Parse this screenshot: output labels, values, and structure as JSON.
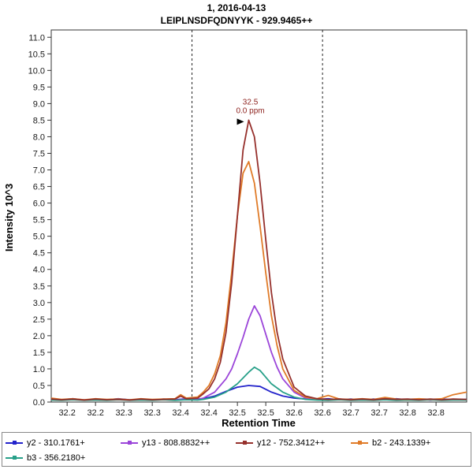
{
  "header": {
    "title_line1": "1, 2016-04-13",
    "title_line2": "LEIPLNSDFQDNYYK - 929.9465++"
  },
  "chart_data": {
    "type": "line",
    "title": "1, 2016-04-13",
    "subtitle": "LEIPLNSDFQDNYYK - 929.9465++",
    "xlabel": "Retention Time",
    "ylabel": "Intensity 10^3",
    "xlim": [
      32.172,
      32.904
    ],
    "ylim": [
      0,
      11.22
    ],
    "grid": false,
    "legend_position": "bottom",
    "xticks": {
      "values": [
        32.2,
        32.25,
        32.3,
        32.35,
        32.4,
        32.45,
        32.5,
        32.55,
        32.6,
        32.65,
        32.7,
        32.75,
        32.8,
        32.85
      ],
      "labels": [
        "32.2",
        "32.2",
        "32.3",
        "32.3",
        "32.4",
        "32.4",
        "32.5",
        "32.5",
        "32.6",
        "32.6",
        "32.7",
        "32.7",
        "32.8",
        "32.8"
      ]
    },
    "yticks": {
      "values": [
        0,
        0.5,
        1.0,
        1.5,
        2.0,
        2.5,
        3.0,
        3.5,
        4.0,
        4.5,
        5.0,
        5.5,
        6.0,
        6.5,
        7.0,
        7.5,
        8.0,
        8.5,
        9.0,
        9.5,
        10.0,
        10.5,
        11.0
      ],
      "labels": [
        "0.0",
        "0.5",
        "1.0",
        "1.5",
        "2.0",
        "2.5",
        "3.0",
        "3.5",
        "4.0",
        "4.5",
        "5.0",
        "5.5",
        "6.0",
        "6.5",
        "7.0",
        "7.5",
        "8.0",
        "8.5",
        "9.0",
        "9.5",
        "10.0",
        "10.5",
        "11.0"
      ]
    },
    "boundaries": [
      32.42,
      32.65
    ],
    "annotation": {
      "x": 32.52,
      "y": 8.5,
      "label": "32.5",
      "sublabel": "0.0 ppm",
      "color": "#8e2420",
      "arrow_color": "#000000"
    },
    "draw_order": [
      0,
      1,
      4,
      3,
      2
    ],
    "series": [
      {
        "id": "y2",
        "name": "y2 - 310.1761+",
        "color": "#2323cb",
        "points": [
          [
            32.172,
            0.1
          ],
          [
            32.19,
            0.07
          ],
          [
            32.21,
            0.1
          ],
          [
            32.23,
            0.06
          ],
          [
            32.25,
            0.09
          ],
          [
            32.27,
            0.07
          ],
          [
            32.29,
            0.1
          ],
          [
            32.31,
            0.07
          ],
          [
            32.33,
            0.08
          ],
          [
            32.35,
            0.06
          ],
          [
            32.37,
            0.09
          ],
          [
            32.39,
            0.07
          ],
          [
            32.41,
            0.1
          ],
          [
            32.43,
            0.09
          ],
          [
            32.44,
            0.1
          ],
          [
            32.46,
            0.18
          ],
          [
            32.48,
            0.32
          ],
          [
            32.5,
            0.45
          ],
          [
            32.52,
            0.5
          ],
          [
            32.54,
            0.47
          ],
          [
            32.56,
            0.3
          ],
          [
            32.58,
            0.18
          ],
          [
            32.6,
            0.12
          ],
          [
            32.62,
            0.09
          ],
          [
            32.64,
            0.08
          ],
          [
            32.66,
            0.1
          ],
          [
            32.68,
            0.07
          ],
          [
            32.7,
            0.09
          ],
          [
            32.72,
            0.06
          ],
          [
            32.74,
            0.09
          ],
          [
            32.76,
            0.07
          ],
          [
            32.78,
            0.1
          ],
          [
            32.8,
            0.07
          ],
          [
            32.82,
            0.09
          ],
          [
            32.84,
            0.06
          ],
          [
            32.86,
            0.09
          ],
          [
            32.88,
            0.07
          ],
          [
            32.904,
            0.08
          ]
        ]
      },
      {
        "id": "y13",
        "name": "y13 - 808.8832++",
        "color": "#9b45d9",
        "points": [
          [
            32.172,
            0.08
          ],
          [
            32.19,
            0.06
          ],
          [
            32.21,
            0.09
          ],
          [
            32.23,
            0.07
          ],
          [
            32.25,
            0.08
          ],
          [
            32.27,
            0.06
          ],
          [
            32.29,
            0.09
          ],
          [
            32.31,
            0.06
          ],
          [
            32.33,
            0.08
          ],
          [
            32.35,
            0.07
          ],
          [
            32.37,
            0.08
          ],
          [
            32.39,
            0.06
          ],
          [
            32.41,
            0.09
          ],
          [
            32.43,
            0.08
          ],
          [
            32.44,
            0.12
          ],
          [
            32.46,
            0.3
          ],
          [
            32.48,
            0.7
          ],
          [
            32.49,
            1.0
          ],
          [
            32.5,
            1.45
          ],
          [
            32.51,
            1.95
          ],
          [
            32.52,
            2.5
          ],
          [
            32.53,
            2.9
          ],
          [
            32.54,
            2.6
          ],
          [
            32.55,
            2.05
          ],
          [
            32.56,
            1.5
          ],
          [
            32.57,
            1.05
          ],
          [
            32.58,
            0.7
          ],
          [
            32.6,
            0.3
          ],
          [
            32.62,
            0.12
          ],
          [
            32.64,
            0.08
          ],
          [
            32.66,
            0.07
          ],
          [
            32.68,
            0.09
          ],
          [
            32.7,
            0.06
          ],
          [
            32.72,
            0.08
          ],
          [
            32.74,
            0.06
          ],
          [
            32.76,
            0.09
          ],
          [
            32.78,
            0.07
          ],
          [
            32.8,
            0.08
          ],
          [
            32.82,
            0.06
          ],
          [
            32.84,
            0.08
          ],
          [
            32.86,
            0.06
          ],
          [
            32.88,
            0.08
          ],
          [
            32.904,
            0.07
          ]
        ]
      },
      {
        "id": "y12",
        "name": "y12 - 752.3412++",
        "color": "#96302c",
        "points": [
          [
            32.172,
            0.09
          ],
          [
            32.19,
            0.07
          ],
          [
            32.21,
            0.09
          ],
          [
            32.23,
            0.06
          ],
          [
            32.25,
            0.09
          ],
          [
            32.27,
            0.07
          ],
          [
            32.29,
            0.08
          ],
          [
            32.31,
            0.06
          ],
          [
            32.33,
            0.09
          ],
          [
            32.35,
            0.07
          ],
          [
            32.37,
            0.08
          ],
          [
            32.39,
            0.09
          ],
          [
            32.4,
            0.18
          ],
          [
            32.41,
            0.1
          ],
          [
            32.43,
            0.12
          ],
          [
            32.44,
            0.25
          ],
          [
            32.45,
            0.4
          ],
          [
            32.46,
            0.7
          ],
          [
            32.47,
            1.2
          ],
          [
            32.48,
            2.1
          ],
          [
            32.49,
            3.6
          ],
          [
            32.5,
            5.6
          ],
          [
            32.51,
            7.6
          ],
          [
            32.52,
            8.5
          ],
          [
            32.53,
            8.0
          ],
          [
            32.54,
            6.6
          ],
          [
            32.55,
            4.9
          ],
          [
            32.56,
            3.3
          ],
          [
            32.57,
            2.1
          ],
          [
            32.58,
            1.3
          ],
          [
            32.6,
            0.45
          ],
          [
            32.62,
            0.18
          ],
          [
            32.64,
            0.1
          ],
          [
            32.66,
            0.08
          ],
          [
            32.68,
            0.09
          ],
          [
            32.7,
            0.07
          ],
          [
            32.72,
            0.09
          ],
          [
            32.74,
            0.07
          ],
          [
            32.76,
            0.1
          ],
          [
            32.78,
            0.08
          ],
          [
            32.8,
            0.09
          ],
          [
            32.82,
            0.07
          ],
          [
            32.84,
            0.09
          ],
          [
            32.86,
            0.07
          ],
          [
            32.88,
            0.09
          ],
          [
            32.904,
            0.08
          ]
        ]
      },
      {
        "id": "b2",
        "name": "b2 - 243.1339+",
        "color": "#e07b28",
        "points": [
          [
            32.172,
            0.12
          ],
          [
            32.19,
            0.08
          ],
          [
            32.21,
            0.1
          ],
          [
            32.23,
            0.07
          ],
          [
            32.25,
            0.1
          ],
          [
            32.27,
            0.08
          ],
          [
            32.29,
            0.09
          ],
          [
            32.31,
            0.07
          ],
          [
            32.33,
            0.1
          ],
          [
            32.35,
            0.08
          ],
          [
            32.37,
            0.09
          ],
          [
            32.39,
            0.1
          ],
          [
            32.4,
            0.22
          ],
          [
            32.41,
            0.12
          ],
          [
            32.43,
            0.15
          ],
          [
            32.44,
            0.3
          ],
          [
            32.45,
            0.5
          ],
          [
            32.46,
            0.85
          ],
          [
            32.47,
            1.4
          ],
          [
            32.48,
            2.4
          ],
          [
            32.49,
            3.9
          ],
          [
            32.5,
            5.6
          ],
          [
            32.51,
            6.9
          ],
          [
            32.52,
            7.25
          ],
          [
            32.53,
            6.6
          ],
          [
            32.54,
            5.3
          ],
          [
            32.55,
            3.9
          ],
          [
            32.56,
            2.6
          ],
          [
            32.57,
            1.7
          ],
          [
            32.58,
            1.0
          ],
          [
            32.6,
            0.35
          ],
          [
            32.62,
            0.15
          ],
          [
            32.64,
            0.1
          ],
          [
            32.66,
            0.2
          ],
          [
            32.68,
            0.09
          ],
          [
            32.7,
            0.08
          ],
          [
            32.72,
            0.1
          ],
          [
            32.74,
            0.08
          ],
          [
            32.76,
            0.14
          ],
          [
            32.78,
            0.09
          ],
          [
            32.8,
            0.08
          ],
          [
            32.82,
            0.1
          ],
          [
            32.84,
            0.08
          ],
          [
            32.86,
            0.1
          ],
          [
            32.88,
            0.22
          ],
          [
            32.904,
            0.3
          ]
        ]
      },
      {
        "id": "b3",
        "name": "b3 - 356.2180+",
        "color": "#28a089",
        "points": [
          [
            32.172,
            0.06
          ],
          [
            32.19,
            0.05
          ],
          [
            32.21,
            0.07
          ],
          [
            32.23,
            0.05
          ],
          [
            32.25,
            0.06
          ],
          [
            32.27,
            0.05
          ],
          [
            32.29,
            0.07
          ],
          [
            32.31,
            0.05
          ],
          [
            32.33,
            0.06
          ],
          [
            32.35,
            0.05
          ],
          [
            32.37,
            0.07
          ],
          [
            32.39,
            0.05
          ],
          [
            32.41,
            0.07
          ],
          [
            32.43,
            0.06
          ],
          [
            32.44,
            0.08
          ],
          [
            32.46,
            0.15
          ],
          [
            32.48,
            0.3
          ],
          [
            32.5,
            0.55
          ],
          [
            32.52,
            0.9
          ],
          [
            32.53,
            1.05
          ],
          [
            32.54,
            0.95
          ],
          [
            32.55,
            0.75
          ],
          [
            32.56,
            0.55
          ],
          [
            32.58,
            0.3
          ],
          [
            32.6,
            0.15
          ],
          [
            32.62,
            0.08
          ],
          [
            32.64,
            0.06
          ],
          [
            32.66,
            0.05
          ],
          [
            32.68,
            0.07
          ],
          [
            32.7,
            0.05
          ],
          [
            32.72,
            0.06
          ],
          [
            32.74,
            0.05
          ],
          [
            32.76,
            0.07
          ],
          [
            32.78,
            0.05
          ],
          [
            32.8,
            0.06
          ],
          [
            32.82,
            0.05
          ],
          [
            32.84,
            0.07
          ],
          [
            32.86,
            0.05
          ],
          [
            32.88,
            0.06
          ],
          [
            32.904,
            0.06
          ]
        ]
      }
    ]
  },
  "legend": {
    "row1_count": 4,
    "row2_count": 1
  }
}
